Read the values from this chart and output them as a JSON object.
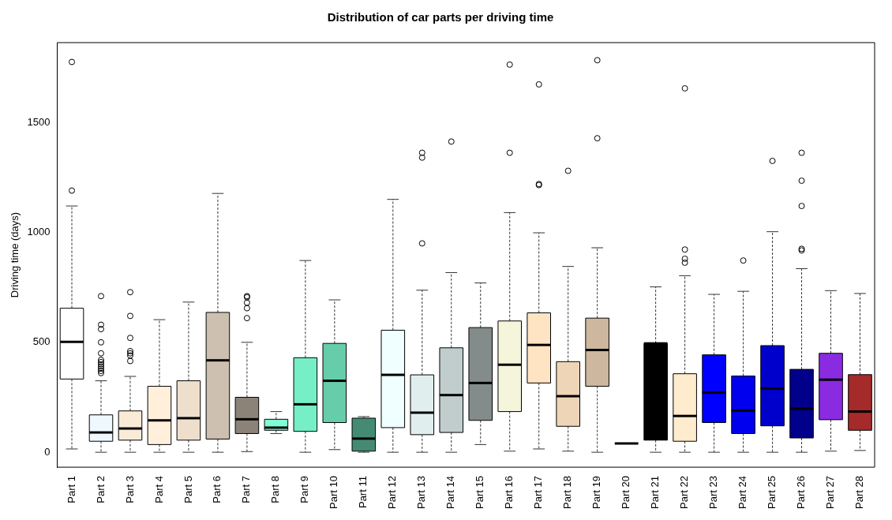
{
  "chart_data": {
    "type": "box",
    "title": "Distribution of car parts per driving time",
    "ylabel": "Driving time (days)",
    "categories": [
      "Part 1",
      "Part 2",
      "Part 3",
      "Part 4",
      "Part 5",
      "Part 6",
      "Part 7",
      "Part 8",
      "Part 9",
      "Part 10",
      "Part 11",
      "Part 12",
      "Part 13",
      "Part 14",
      "Part 15",
      "Part 16",
      "Part 17",
      "Part 18",
      "Part 19",
      "Part 20",
      "Part 21",
      "Part 22",
      "Part 23",
      "Part 24",
      "Part 25",
      "Part 26",
      "Part 27",
      "Part 28"
    ],
    "colors": [
      "#ffffff",
      "#f0f8ff",
      "#faebd7",
      "#ffefdb",
      "#eedfcc",
      "#cdc0b0",
      "#8b8378",
      "#7fffd4",
      "#76eec6",
      "#66cdaa",
      "#458b74",
      "#f0ffff",
      "#e0eeee",
      "#c1cdcd",
      "#838b8b",
      "#f5f5dc",
      "#ffe4c4",
      "#eed5b7",
      "#cdb79e",
      "#000000",
      "#000000",
      "#ffebcd",
      "#0000ff",
      "#0000ee",
      "#0000cd",
      "#00008b",
      "#8a2be2",
      "#a52a2a"
    ],
    "boxes": [
      {
        "low": 15,
        "q1": 333,
        "median": 502,
        "q3": 655,
        "high": 1120,
        "outliers": [
          1190,
          1775
        ]
      },
      {
        "low": 0,
        "q1": 50,
        "median": 90,
        "q3": 170,
        "high": 325,
        "outliers": [
          360,
          370,
          380,
          390,
          400,
          410,
          420,
          450,
          500,
          560,
          580,
          710
        ]
      },
      {
        "low": 0,
        "q1": 55,
        "median": 108,
        "q3": 188,
        "high": 345,
        "outliers": [
          415,
          440,
          450,
          460,
          520,
          620,
          728
        ]
      },
      {
        "low": 0,
        "q1": 35,
        "median": 145,
        "q3": 300,
        "high": 603
      },
      {
        "low": 0,
        "q1": 55,
        "median": 155,
        "q3": 325,
        "high": 683
      },
      {
        "low": 0,
        "q1": 60,
        "median": 418,
        "q3": 636,
        "high": 1177
      },
      {
        "low": 3,
        "q1": 85,
        "median": 150,
        "q3": 250,
        "high": 500,
        "outliers": [
          610,
          655,
          680,
          705,
          710
        ]
      },
      {
        "low": 85,
        "q1": 100,
        "median": 112,
        "q3": 150,
        "high": 185
      },
      {
        "low": 0,
        "q1": 95,
        "median": 218,
        "q3": 430,
        "high": 872
      },
      {
        "low": 12,
        "q1": 135,
        "median": 325,
        "q3": 495,
        "high": 693
      },
      {
        "low": 0,
        "q1": 5,
        "median": 62,
        "q3": 155,
        "high": 162
      },
      {
        "low": 0,
        "q1": 112,
        "median": 352,
        "q3": 555,
        "high": 1150
      },
      {
        "low": 0,
        "q1": 80,
        "median": 180,
        "q3": 352,
        "high": 737,
        "outliers": [
          950,
          1340,
          1362
        ]
      },
      {
        "low": 0,
        "q1": 90,
        "median": 260,
        "q3": 475,
        "high": 817,
        "outliers": [
          1413
        ]
      },
      {
        "low": 35,
        "q1": 145,
        "median": 315,
        "q3": 567,
        "high": 770
      },
      {
        "low": 5,
        "q1": 185,
        "median": 398,
        "q3": 597,
        "high": 1090,
        "outliers": [
          1362,
          1763
        ]
      },
      {
        "low": 15,
        "q1": 315,
        "median": 488,
        "q3": 634,
        "high": 998,
        "outliers": [
          1215,
          1220,
          1673
        ]
      },
      {
        "low": 5,
        "q1": 118,
        "median": 255,
        "q3": 412,
        "high": 845,
        "outliers": [
          1280
        ]
      },
      {
        "low": 0,
        "q1": 300,
        "median": 465,
        "q3": 610,
        "high": 930,
        "outliers": [
          1428,
          1783
        ]
      },
      {
        "low": 40,
        "q1": 40,
        "median": 40,
        "q3": 40,
        "high": 40
      },
      {
        "low": 0,
        "q1": 55,
        "median": 495,
        "q3": 495,
        "high": 752
      },
      {
        "low": 0,
        "q1": 50,
        "median": 165,
        "q3": 357,
        "high": 803,
        "outliers": [
          862,
          880,
          922,
          1655
        ]
      },
      {
        "low": 0,
        "q1": 135,
        "median": 272,
        "q3": 443,
        "high": 718
      },
      {
        "low": 0,
        "q1": 85,
        "median": 190,
        "q3": 347,
        "high": 732,
        "outliers": [
          872
        ]
      },
      {
        "low": 0,
        "q1": 120,
        "median": 290,
        "q3": 485,
        "high": 1003,
        "outliers": [
          1325
        ]
      },
      {
        "low": 0,
        "q1": 65,
        "median": 198,
        "q3": 377,
        "high": 835,
        "outliers": [
          918,
          925,
          1120,
          1235,
          1362
        ]
      },
      {
        "low": 5,
        "q1": 148,
        "median": 330,
        "q3": 450,
        "high": 735
      },
      {
        "low": 8,
        "q1": 100,
        "median": 185,
        "q3": 353,
        "high": 722
      }
    ],
    "ylim": [
      -68,
      1863
    ],
    "yticks": [
      0,
      500,
      1000,
      1500
    ]
  }
}
